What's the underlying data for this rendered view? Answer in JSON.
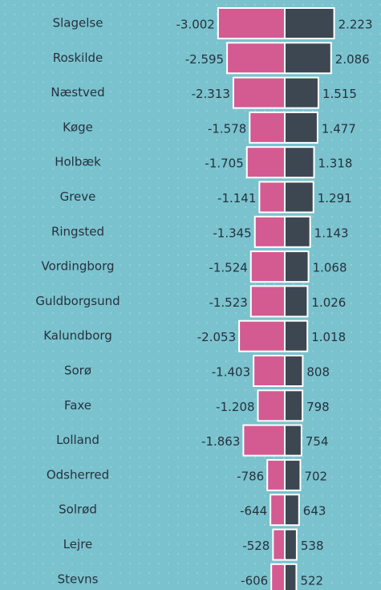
{
  "chart_data": {
    "type": "diverging-bar",
    "categories": [
      "Slagelse",
      "Roskilde",
      "Næstved",
      "Køge",
      "Holbæk",
      "Greve",
      "Ringsted",
      "Vordingborg",
      "Guldborgsund",
      "Kalundborg",
      "Sorø",
      "Faxe",
      "Lolland",
      "Odsherred",
      "Solrød",
      "Lejre",
      "Stevns"
    ],
    "series": [
      {
        "color": "#d45a92",
        "values": [
          -3002,
          -2595,
          -2313,
          -1578,
          -1705,
          -1141,
          -1345,
          -1524,
          -1523,
          -2053,
          -1403,
          -1208,
          -1863,
          -786,
          -644,
          -528,
          -606
        ],
        "value_labels": [
          "-3.002",
          "-2.595",
          "-2.313",
          "-1.578",
          "-1.705",
          "-1.141",
          "-1.345",
          "-1.524",
          "-1.523",
          "-2.053",
          "-1.403",
          "-1.208",
          "-1.863",
          "-786",
          "-644",
          "-528",
          "-606"
        ]
      },
      {
        "color": "#3c4752",
        "values": [
          2223,
          2086,
          1515,
          1477,
          1318,
          1291,
          1143,
          1068,
          1026,
          1018,
          808,
          798,
          754,
          702,
          643,
          538,
          522
        ],
        "value_labels": [
          "2.223",
          "2.086",
          "1.515",
          "1.477",
          "1.318",
          "1.291",
          "1.143",
          "1.068",
          "1.026",
          "1.018",
          "808",
          "798",
          "754",
          "702",
          "643",
          "538",
          "522"
        ]
      }
    ]
  }
}
